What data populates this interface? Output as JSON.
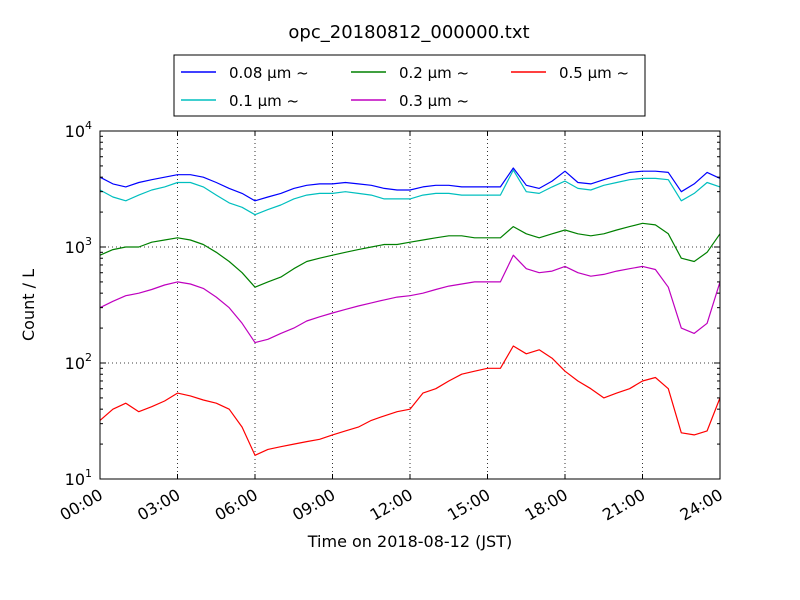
{
  "chart_data": {
    "type": "line",
    "title": "opc_20180812_000000.txt",
    "xlabel": "Time on 2018-08-12 (JST)",
    "ylabel": "Count / L",
    "yscale": "log",
    "xlim": [
      "00:00",
      "24:00"
    ],
    "ylim": [
      10,
      10000
    ],
    "grid": true,
    "legend_position": "top-center",
    "x_ticks": [
      "00:00",
      "03:00",
      "06:00",
      "09:00",
      "12:00",
      "15:00",
      "18:00",
      "21:00",
      "24:00"
    ],
    "y_ticks": [
      {
        "value": 10,
        "base": "10",
        "exp": "1"
      },
      {
        "value": 100,
        "base": "10",
        "exp": "2"
      },
      {
        "value": 1000,
        "base": "10",
        "exp": "3"
      },
      {
        "value": 10000,
        "base": "10",
        "exp": "4"
      }
    ],
    "x": [
      "00:00",
      "00:30",
      "01:00",
      "01:30",
      "02:00",
      "02:30",
      "03:00",
      "03:30",
      "04:00",
      "04:30",
      "05:00",
      "05:30",
      "06:00",
      "06:30",
      "07:00",
      "07:30",
      "08:00",
      "08:30",
      "09:00",
      "09:30",
      "10:00",
      "10:30",
      "11:00",
      "11:30",
      "12:00",
      "12:30",
      "13:00",
      "13:30",
      "14:00",
      "14:30",
      "15:00",
      "15:30",
      "16:00",
      "16:30",
      "17:00",
      "17:30",
      "18:00",
      "18:30",
      "19:00",
      "19:30",
      "20:00",
      "20:30",
      "21:00",
      "21:30",
      "22:00",
      "22:30",
      "23:00",
      "23:30",
      "24:00"
    ],
    "series": [
      {
        "name": "0.08 μm ~",
        "color": "#0000ff",
        "values": [
          4000,
          3500,
          3300,
          3600,
          3800,
          4000,
          4200,
          4200,
          4000,
          3600,
          3200,
          2900,
          2500,
          2700,
          2900,
          3200,
          3400,
          3500,
          3500,
          3600,
          3500,
          3400,
          3200,
          3100,
          3100,
          3300,
          3400,
          3400,
          3300,
          3300,
          3300,
          3300,
          4800,
          3400,
          3200,
          3700,
          4500,
          3600,
          3500,
          3800,
          4100,
          4400,
          4500,
          4500,
          4400,
          3000,
          3500,
          4400,
          3900
        ]
      },
      {
        "name": "0.1 μm ~",
        "color": "#00bfbf",
        "values": [
          3100,
          2700,
          2500,
          2800,
          3100,
          3300,
          3600,
          3600,
          3300,
          2800,
          2400,
          2200,
          1900,
          2100,
          2300,
          2600,
          2800,
          2900,
          2900,
          3000,
          2900,
          2800,
          2600,
          2600,
          2600,
          2800,
          2900,
          2900,
          2800,
          2800,
          2800,
          2800,
          4600,
          3000,
          2900,
          3300,
          3700,
          3200,
          3100,
          3400,
          3600,
          3800,
          3900,
          3900,
          3800,
          2500,
          2900,
          3600,
          3300
        ]
      },
      {
        "name": "0.2 μm ~",
        "color": "#008000",
        "values": [
          850,
          950,
          1000,
          1000,
          1100,
          1150,
          1200,
          1150,
          1050,
          900,
          750,
          600,
          450,
          500,
          550,
          650,
          750,
          800,
          850,
          900,
          950,
          1000,
          1050,
          1050,
          1100,
          1150,
          1200,
          1250,
          1250,
          1200,
          1200,
          1200,
          1500,
          1300,
          1200,
          1300,
          1400,
          1300,
          1250,
          1300,
          1400,
          1500,
          1600,
          1550,
          1300,
          800,
          750,
          900,
          1300
        ]
      },
      {
        "name": "0.3 μm ~",
        "color": "#bf00bf",
        "values": [
          300,
          340,
          380,
          400,
          430,
          470,
          500,
          480,
          440,
          370,
          300,
          220,
          150,
          160,
          180,
          200,
          230,
          250,
          270,
          290,
          310,
          330,
          350,
          370,
          380,
          400,
          430,
          460,
          480,
          500,
          500,
          500,
          850,
          650,
          600,
          620,
          680,
          600,
          560,
          580,
          620,
          650,
          680,
          640,
          450,
          200,
          180,
          220,
          500
        ]
      },
      {
        "name": "0.5 μm ~",
        "color": "#ff0000",
        "values": [
          32,
          40,
          45,
          38,
          42,
          47,
          55,
          52,
          48,
          45,
          40,
          28,
          16,
          18,
          19,
          20,
          21,
          22,
          24,
          26,
          28,
          32,
          35,
          38,
          40,
          55,
          60,
          70,
          80,
          85,
          90,
          90,
          140,
          120,
          130,
          110,
          85,
          70,
          60,
          50,
          55,
          60,
          70,
          75,
          60,
          25,
          24,
          26,
          50
        ]
      }
    ]
  }
}
